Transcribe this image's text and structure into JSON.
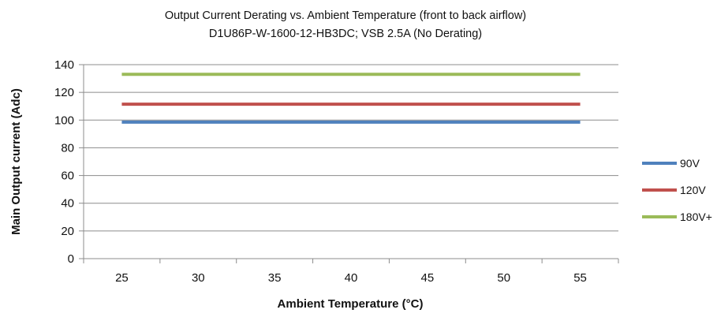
{
  "chart_data": {
    "type": "line",
    "title": "Output Current Derating vs. Ambient Temperature (front to back airflow)",
    "subtitle": "D1U86P-W-1600-12-HB3DC; VSB 2.5A (No Derating)",
    "xlabel": "Ambient Temperature (°C)",
    "ylabel": "Main Output current (Adc)",
    "x": [
      25,
      30,
      35,
      40,
      45,
      50,
      55
    ],
    "xlim": [
      22.5,
      57.5
    ],
    "ylim": [
      0,
      140
    ],
    "yticks": [
      0,
      20,
      40,
      60,
      80,
      100,
      120,
      140
    ],
    "xticks": [
      25,
      30,
      35,
      40,
      45,
      50,
      55
    ],
    "grid": "horizontal",
    "legend_position": "right",
    "series": [
      {
        "name": "90V",
        "color": "#4f81bd",
        "values": [
          98.5,
          98.5,
          98.5,
          98.5,
          98.5,
          98.5,
          98.5
        ]
      },
      {
        "name": "120V",
        "color": "#c0504d",
        "values": [
          111.5,
          111.5,
          111.5,
          111.5,
          111.5,
          111.5,
          111.5
        ]
      },
      {
        "name": "180V+",
        "color": "#9bbb59",
        "values": [
          133,
          133,
          133,
          133,
          133,
          133,
          133
        ]
      }
    ]
  }
}
